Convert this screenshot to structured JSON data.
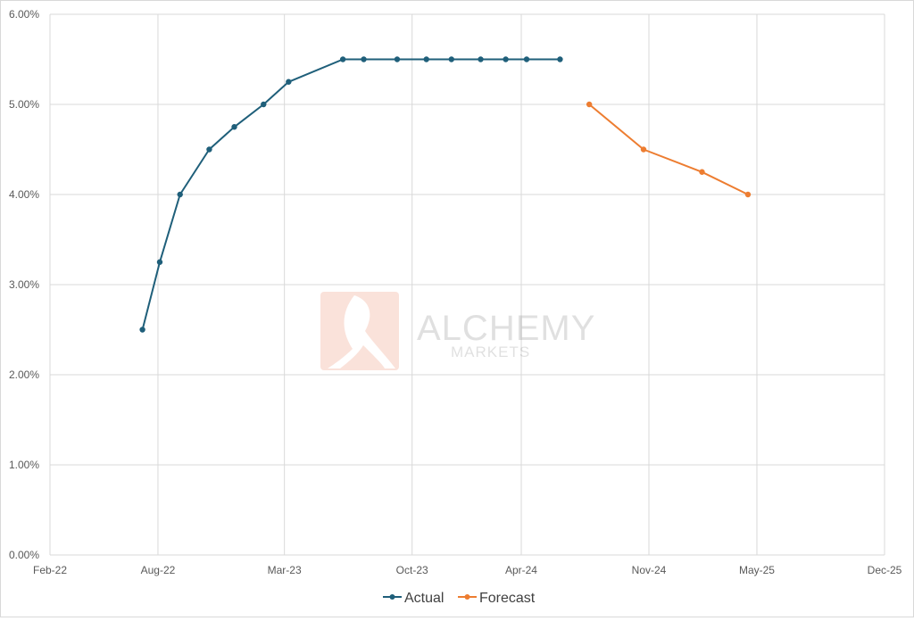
{
  "chart_data": {
    "type": "line",
    "x_axis": {
      "type": "date",
      "min": "2022-02-01",
      "max": "2025-12-01",
      "tick_labels": [
        "Feb-22",
        "Aug-22",
        "Mar-23",
        "Oct-23",
        "Apr-24",
        "Nov-24",
        "May-25",
        "Dec-25"
      ],
      "tick_dates": [
        "2022-02-01",
        "2022-08-01",
        "2023-03-01",
        "2023-10-01",
        "2024-04-01",
        "2024-11-01",
        "2025-05-01",
        "2025-12-01"
      ]
    },
    "y_axis": {
      "min": 0.0,
      "max": 6.0,
      "unit": "%",
      "tick_values": [
        0,
        1,
        2,
        3,
        4,
        5,
        6
      ],
      "tick_labels": [
        "0.00%",
        "1.00%",
        "2.00%",
        "3.00%",
        "4.00%",
        "5.00%",
        "6.00%"
      ]
    },
    "grid": {
      "horizontal": true,
      "vertical": true
    },
    "legend_position": "bottom",
    "series": [
      {
        "name": "Actual",
        "color": "#1f5f7a",
        "points": [
          {
            "x": "2022-07-06",
            "y": 2.5
          },
          {
            "x": "2022-08-04",
            "y": 3.25
          },
          {
            "x": "2022-09-07",
            "y": 4.0
          },
          {
            "x": "2022-10-26",
            "y": 4.5
          },
          {
            "x": "2022-12-07",
            "y": 4.75
          },
          {
            "x": "2023-01-25",
            "y": 5.0
          },
          {
            "x": "2023-03-08",
            "y": 5.25
          },
          {
            "x": "2023-06-07",
            "y": 5.5
          },
          {
            "x": "2023-07-12",
            "y": 5.5
          },
          {
            "x": "2023-09-06",
            "y": 5.5
          },
          {
            "x": "2023-10-25",
            "y": 5.5
          },
          {
            "x": "2023-12-06",
            "y": 5.5
          },
          {
            "x": "2024-01-24",
            "y": 5.5
          },
          {
            "x": "2024-03-06",
            "y": 5.5
          },
          {
            "x": "2024-04-10",
            "y": 5.5
          },
          {
            "x": "2024-06-05",
            "y": 5.5
          }
        ]
      },
      {
        "name": "Forecast",
        "color": "#ed7d31",
        "points": [
          {
            "x": "2024-07-24",
            "y": 5.0
          },
          {
            "x": "2024-10-23",
            "y": 4.5
          },
          {
            "x": "2025-01-29",
            "y": 4.25
          },
          {
            "x": "2025-04-16",
            "y": 4.0
          }
        ]
      }
    ]
  },
  "watermark": {
    "brand": "ALCHEMY",
    "subtitle": "MARKETS"
  }
}
